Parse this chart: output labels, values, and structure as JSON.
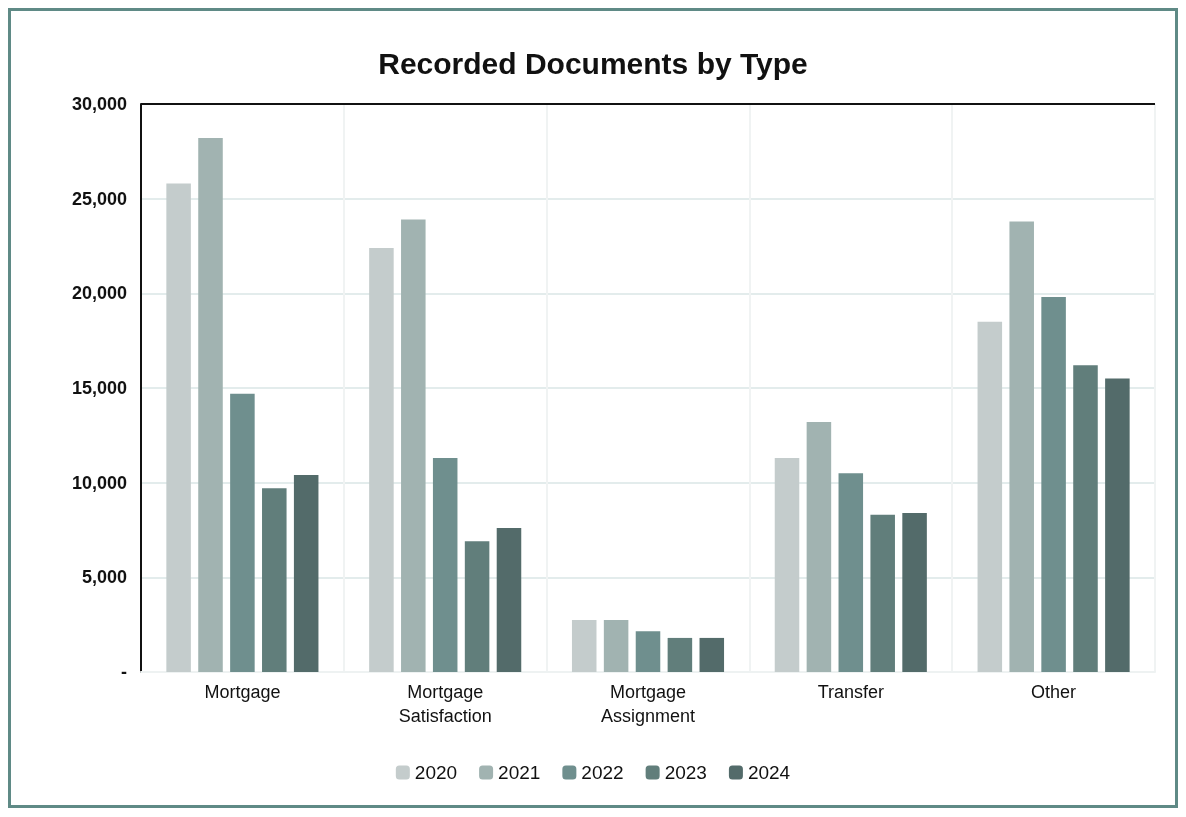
{
  "chart_data": {
    "type": "bar",
    "title": "Recorded Documents by Type",
    "categories": [
      "Mortgage",
      "Mortgage\nSatisfaction",
      "Mortgage\nAssignment",
      "Transfer",
      "Other"
    ],
    "series": [
      {
        "name": "2020",
        "color": "#c4cccc",
        "values": [
          25800,
          22400,
          2750,
          11300,
          18500
        ]
      },
      {
        "name": "2021",
        "color": "#a1b3b1",
        "values": [
          28200,
          23900,
          2750,
          13200,
          23800
        ]
      },
      {
        "name": "2022",
        "color": "#6f8f8e",
        "values": [
          14700,
          11300,
          2150,
          10500,
          19800
        ]
      },
      {
        "name": "2023",
        "color": "#617e7b",
        "values": [
          9700,
          6900,
          1800,
          8300,
          16200
        ]
      },
      {
        "name": "2024",
        "color": "#536b6a",
        "values": [
          10400,
          7600,
          1800,
          8400,
          15500
        ]
      }
    ],
    "ylim": [
      0,
      30000
    ],
    "yticks": [
      {
        "value": 0,
        "label": "-"
      },
      {
        "value": 5000,
        "label": "5,000"
      },
      {
        "value": 10000,
        "label": "10,000"
      },
      {
        "value": 15000,
        "label": "15,000"
      },
      {
        "value": 20000,
        "label": "20,000"
      },
      {
        "value": 25000,
        "label": "25,000"
      },
      {
        "value": 30000,
        "label": "30,000"
      }
    ],
    "grid": true,
    "legend": "bottom"
  }
}
